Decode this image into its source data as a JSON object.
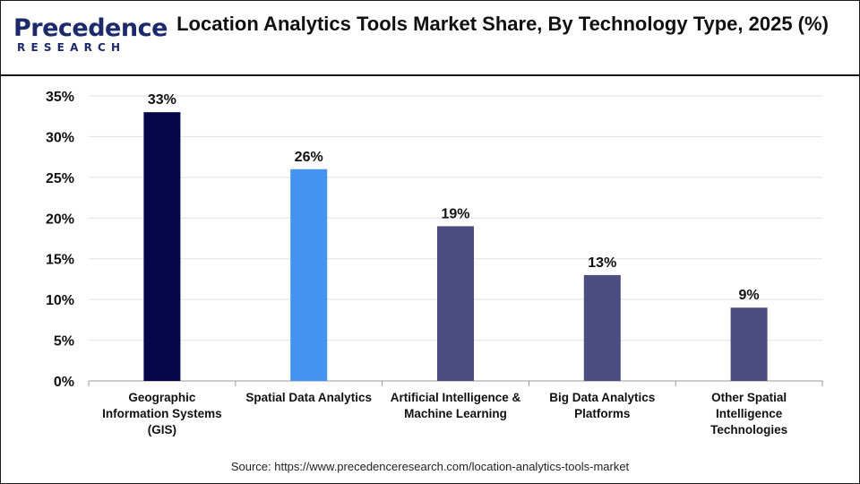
{
  "logo": {
    "word": "Precedence",
    "sub": "RESEARCH"
  },
  "source": "Source: https://www.precedenceresearch.com/location-analytics-tools-market",
  "colors": {
    "bar_default": "#4b4d80",
    "bar_first": "#04074a",
    "bar_second": "#4493f0",
    "grid": "#e2e2e2",
    "axis": "#9a9a9a"
  },
  "chart_data": {
    "type": "bar",
    "title": "Location Analytics Tools Market Share, By Technology Type, 2025 (%)",
    "categories": [
      "Geographic Information Systems (GIS)",
      "Spatial Data Analytics",
      "Artificial Intelligence & Machine Learning",
      "Big Data Analytics Platforms",
      "Other Spatial Intelligence Technologies"
    ],
    "category_lines": [
      [
        "Geographic",
        "Information Systems",
        "(GIS)"
      ],
      [
        "Spatial Data Analytics"
      ],
      [
        "Artificial Intelligence &",
        "Machine Learning"
      ],
      [
        "Big Data Analytics",
        "Platforms"
      ],
      [
        "Other Spatial",
        "Intelligence",
        "Technologies"
      ]
    ],
    "values": [
      33,
      26,
      19,
      13,
      9
    ],
    "data_labels": [
      "33%",
      "26%",
      "19%",
      "13%",
      "9%"
    ],
    "yticks": [
      0,
      5,
      10,
      15,
      20,
      25,
      30,
      35
    ],
    "ytick_labels": [
      "0%",
      "5%",
      "10%",
      "15%",
      "20%",
      "25%",
      "30%",
      "35%"
    ],
    "ylim": [
      0,
      35
    ],
    "grid": true,
    "xlabel": "",
    "ylabel": ""
  }
}
